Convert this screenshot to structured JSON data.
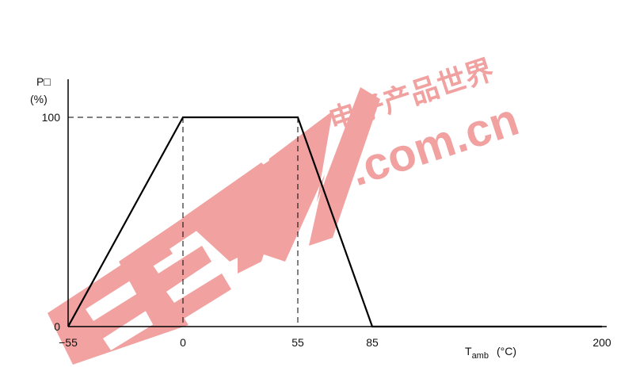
{
  "chart_data": {
    "type": "line",
    "title": "",
    "ylabel_line1": "P□",
    "ylabel_line2": "(%)",
    "xlabel_main": "T",
    "xlabel_sub": "amb",
    "xlabel_unit": "(°C)",
    "xlim": [
      -55,
      200
    ],
    "ylim": [
      0,
      100
    ],
    "x": [
      -55,
      0,
      55,
      85,
      200
    ],
    "y": [
      0,
      100,
      100,
      0,
      0
    ],
    "x_ticks": [
      {
        "value": -55,
        "label": "−55"
      },
      {
        "value": 0,
        "label": "0"
      },
      {
        "value": 55,
        "label": "55"
      },
      {
        "value": 85,
        "label": "85"
      },
      {
        "value": 200,
        "label": "200"
      }
    ],
    "y_ticks": [
      {
        "value": 0,
        "label": "0"
      },
      {
        "value": 100,
        "label": "100"
      }
    ],
    "reference_lines": [
      {
        "axis": "y",
        "value": 100,
        "style": "dashed"
      },
      {
        "axis": "x",
        "value": 0,
        "style": "dashed"
      },
      {
        "axis": "x",
        "value": 55,
        "style": "dashed"
      }
    ],
    "line_color": "#000000"
  },
  "watermark": {
    "text_dotcom": ".com.cn",
    "text_cn_chars": "电子产品世界",
    "logo_text": "EEPW",
    "color": "#e0312f"
  }
}
